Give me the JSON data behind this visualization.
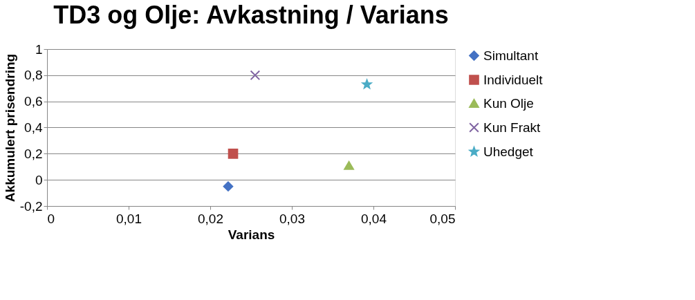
{
  "chart_data": {
    "type": "scatter",
    "title": "TD3 og Olje: Avkastning  / Varians",
    "xlabel": "Varians",
    "ylabel": "Akkumulert prisendring",
    "xlim": [
      0,
      0.05
    ],
    "xticks": [
      {
        "value": 0,
        "label": "0"
      },
      {
        "value": 0.01,
        "label": "0,01"
      },
      {
        "value": 0.02,
        "label": "0,02"
      },
      {
        "value": 0.03,
        "label": "0,03"
      },
      {
        "value": 0.04,
        "label": "0,04"
      },
      {
        "value": 0.05,
        "label": "0,05"
      }
    ],
    "ylim": [
      -0.2,
      1
    ],
    "yticks": [
      {
        "value": -0.2,
        "label": "-0,2"
      },
      {
        "value": 0,
        "label": "0"
      },
      {
        "value": 0.2,
        "label": "0,2"
      },
      {
        "value": 0.4,
        "label": "0,4"
      },
      {
        "value": 0.6,
        "label": "0,6"
      },
      {
        "value": 0.8,
        "label": "0,8"
      },
      {
        "value": 1,
        "label": "1"
      }
    ],
    "grid": "y",
    "legend": "right",
    "series": [
      {
        "name": "Simultant",
        "color": "#4472c4",
        "marker": "diamond",
        "x": [
          0.0222
        ],
        "values": [
          -0.05
        ]
      },
      {
        "name": "Individuelt",
        "color": "#c0504d",
        "marker": "square",
        "x": [
          0.0228
        ],
        "values": [
          0.2
        ]
      },
      {
        "name": "Kun Olje",
        "color": "#9bbb59",
        "marker": "triangle",
        "x": [
          0.037
        ],
        "values": [
          0.11
        ]
      },
      {
        "name": "Kun Frakt",
        "color": "#8064a2",
        "marker": "cross",
        "x": [
          0.0255
        ],
        "values": [
          0.8
        ]
      },
      {
        "name": "Uhedget",
        "color": "#4bacc6",
        "marker": "star",
        "x": [
          0.0392
        ],
        "values": [
          0.73
        ]
      }
    ]
  }
}
